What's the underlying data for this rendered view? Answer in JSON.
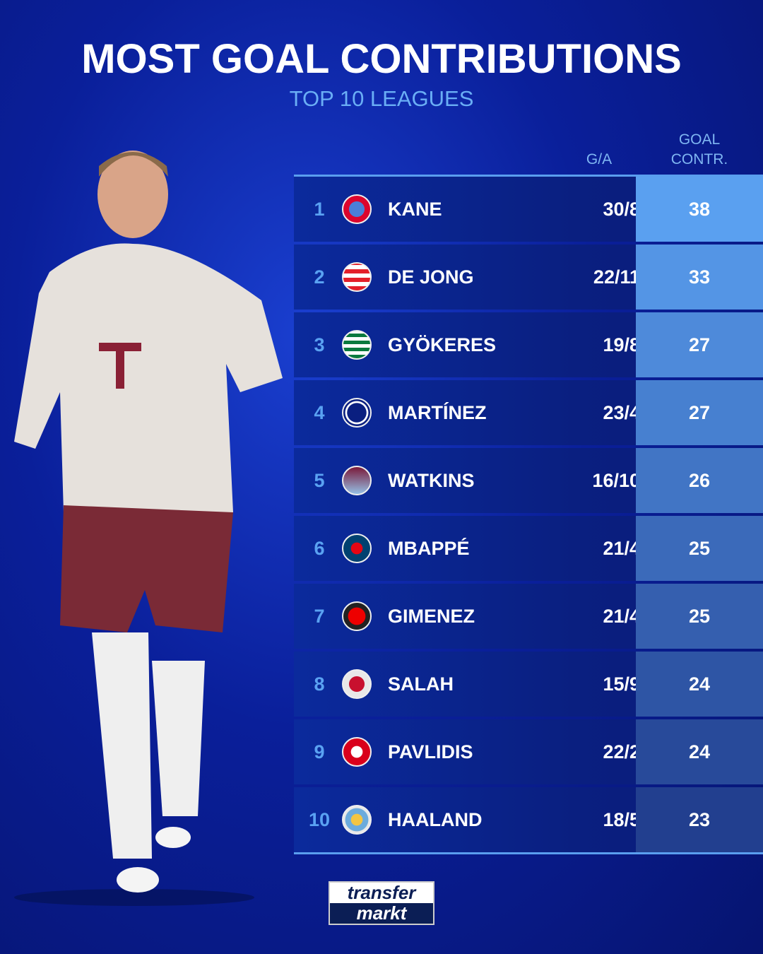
{
  "title": "MOST GOAL CONTRIBUTIONS",
  "subtitle": "TOP 10 LEAGUES",
  "brand": "transfermarkt",
  "brand_parts": [
    "transfer",
    "markt"
  ],
  "colors": {
    "background": "#0a1f9a",
    "accent": "#5aa2f2",
    "goal_col_top": "#5aa0f0",
    "goal_col_bottom": "#223f8f"
  },
  "chart_data": {
    "type": "table",
    "columns": [
      "",
      "",
      "",
      "G/A",
      "GOAL CONTR."
    ],
    "column_header_lines": {
      "ga": "G/A",
      "gc1": "GOAL",
      "gc2": "CONTR."
    },
    "rows": [
      {
        "rank": "1",
        "crest": "bayern-munich-crest",
        "name": "KANE",
        "ga": "30/8",
        "gc": 38
      },
      {
        "rank": "2",
        "crest": "psv-crest",
        "name": "DE JONG",
        "ga": "22/11",
        "gc": 33
      },
      {
        "rank": "3",
        "crest": "sporting-cp-crest",
        "name": "GYÖKERES",
        "ga": "19/8",
        "gc": 27
      },
      {
        "rank": "4",
        "crest": "inter-crest",
        "name": "MARTÍNEZ",
        "ga": "23/4",
        "gc": 27
      },
      {
        "rank": "5",
        "crest": "aston-villa-crest",
        "name": "WATKINS",
        "ga": "16/10",
        "gc": 26
      },
      {
        "rank": "6",
        "crest": "psg-crest",
        "name": "MBAPPÉ",
        "ga": "21/4",
        "gc": 25
      },
      {
        "rank": "7",
        "crest": "feyenoord-crest",
        "name": "GIMENEZ",
        "ga": "21/4",
        "gc": 25
      },
      {
        "rank": "8",
        "crest": "liverpool-crest",
        "name": "SALAH",
        "ga": "15/9",
        "gc": 24
      },
      {
        "rank": "9",
        "crest": "az-alkmaar-crest",
        "name": "PAVLIDIS",
        "ga": "22/2",
        "gc": 24
      },
      {
        "rank": "10",
        "crest": "man-city-crest",
        "name": "HAALAND",
        "ga": "18/5",
        "gc": 23
      }
    ]
  }
}
